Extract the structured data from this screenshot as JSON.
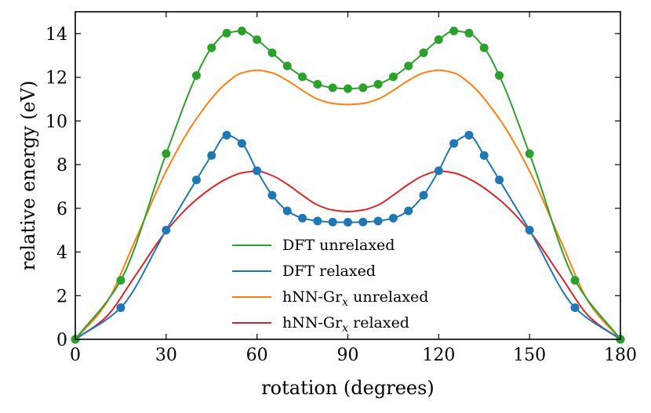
{
  "chart_data": {
    "type": "line",
    "title": "",
    "xlabel": "rotation (degrees)",
    "ylabel": "relative energy (eV)",
    "xlim": [
      0,
      180
    ],
    "ylim": [
      0,
      15
    ],
    "x_ticks": [
      0,
      30,
      60,
      90,
      120,
      150,
      180
    ],
    "y_ticks": [
      0,
      2,
      4,
      6,
      8,
      10,
      12,
      14
    ],
    "grid": false,
    "legend_position": "lower-center",
    "series": [
      {
        "name": "DFT unrelaxed",
        "color": "#2ca02c",
        "markers": true,
        "x": [
          0,
          15,
          30,
          40,
          45,
          50,
          55,
          60,
          65,
          70,
          75,
          80,
          85,
          90,
          95,
          100,
          105,
          110,
          115,
          120,
          125,
          130,
          135,
          140,
          150,
          165,
          180
        ],
        "y": [
          0,
          2.7,
          8.5,
          12.08,
          13.35,
          14.02,
          14.12,
          13.72,
          13.12,
          12.52,
          12.02,
          11.68,
          11.52,
          11.48,
          11.52,
          11.68,
          12.02,
          12.52,
          13.12,
          13.72,
          14.12,
          14.02,
          13.35,
          12.08,
          8.5,
          2.7,
          0
        ]
      },
      {
        "name": "DFT relaxed",
        "color": "#1f77b4",
        "markers": true,
        "x": [
          0,
          15,
          30,
          40,
          45,
          50,
          55,
          60,
          65,
          70,
          75,
          80,
          85,
          90,
          95,
          100,
          105,
          110,
          115,
          120,
          125,
          130,
          135,
          140,
          150,
          165,
          180
        ],
        "y": [
          0,
          1.45,
          5.0,
          7.3,
          8.42,
          9.35,
          8.97,
          7.72,
          6.6,
          5.88,
          5.55,
          5.42,
          5.37,
          5.36,
          5.37,
          5.42,
          5.55,
          5.88,
          6.6,
          7.72,
          8.97,
          9.35,
          8.42,
          7.3,
          5.0,
          1.45,
          0
        ]
      },
      {
        "name": "hNN-Gr",
        "name_sub": "x",
        "name_suffix": " unrelaxed",
        "color": "#ff7f0e",
        "markers": false,
        "x": [
          0,
          10,
          20,
          30,
          40,
          50,
          55,
          60,
          65,
          70,
          75,
          80,
          85,
          90,
          95,
          100,
          105,
          110,
          115,
          120,
          125,
          130,
          140,
          150,
          160,
          170,
          180
        ],
        "y": [
          0,
          1.6,
          4.6,
          7.7,
          10.1,
          11.75,
          12.2,
          12.32,
          12.2,
          11.85,
          11.4,
          11.0,
          10.8,
          10.75,
          10.8,
          11.0,
          11.4,
          11.85,
          12.2,
          12.32,
          12.2,
          11.75,
          10.1,
          7.7,
          4.6,
          1.6,
          0
        ]
      },
      {
        "name": "hNN-Gr",
        "name_sub": "x",
        "name_suffix": " relaxed",
        "color": "#d62728",
        "markers": false,
        "x": [
          0,
          10,
          20,
          30,
          40,
          50,
          55,
          60,
          65,
          70,
          75,
          80,
          85,
          90,
          95,
          100,
          105,
          110,
          115,
          120,
          125,
          130,
          140,
          150,
          160,
          170,
          180
        ],
        "y": [
          0,
          1.0,
          2.95,
          4.95,
          6.4,
          7.35,
          7.62,
          7.7,
          7.5,
          7.1,
          6.6,
          6.15,
          5.92,
          5.85,
          5.92,
          6.15,
          6.6,
          7.1,
          7.5,
          7.7,
          7.62,
          7.35,
          6.4,
          4.95,
          2.95,
          1.0,
          0
        ]
      }
    ]
  }
}
